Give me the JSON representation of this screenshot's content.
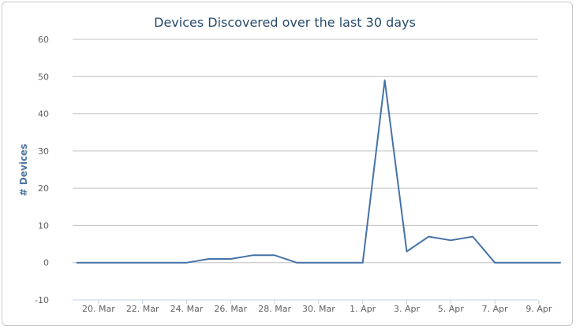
{
  "chart_data": {
    "type": "line",
    "title": "Devices Discovered over the last 30 days",
    "xlabel": "",
    "ylabel": "# Devices",
    "ylim": [
      -10,
      60
    ],
    "yticks": [
      -10,
      0,
      10,
      20,
      30,
      40,
      50,
      60
    ],
    "grid": true,
    "x": [
      "19. Mar",
      "20. Mar",
      "21. Mar",
      "22. Mar",
      "23. Mar",
      "24. Mar",
      "25. Mar",
      "26. Mar",
      "27. Mar",
      "28. Mar",
      "29. Mar",
      "30. Mar",
      "31. Mar",
      "1. Apr",
      "2. Apr",
      "3. Apr",
      "4. Apr",
      "5. Apr",
      "6. Apr",
      "7. Apr",
      "8. Apr",
      "9. Apr",
      "10. Apr"
    ],
    "xtick_labels": [
      "20. Mar",
      "22. Mar",
      "24. Mar",
      "26. Mar",
      "28. Mar",
      "30. Mar",
      "1. Apr",
      "3. Apr",
      "5. Apr",
      "7. Apr",
      "9. Apr"
    ],
    "series": [
      {
        "name": "",
        "values": [
          0,
          0,
          0,
          0,
          0,
          0,
          1,
          1,
          2,
          2,
          0,
          0,
          0,
          0,
          49,
          3,
          7,
          6,
          7,
          0,
          0,
          0,
          0
        ]
      }
    ]
  },
  "colors": {
    "series": "#4572a7",
    "title": "#274b6d",
    "ylabel": "#4d759e"
  }
}
